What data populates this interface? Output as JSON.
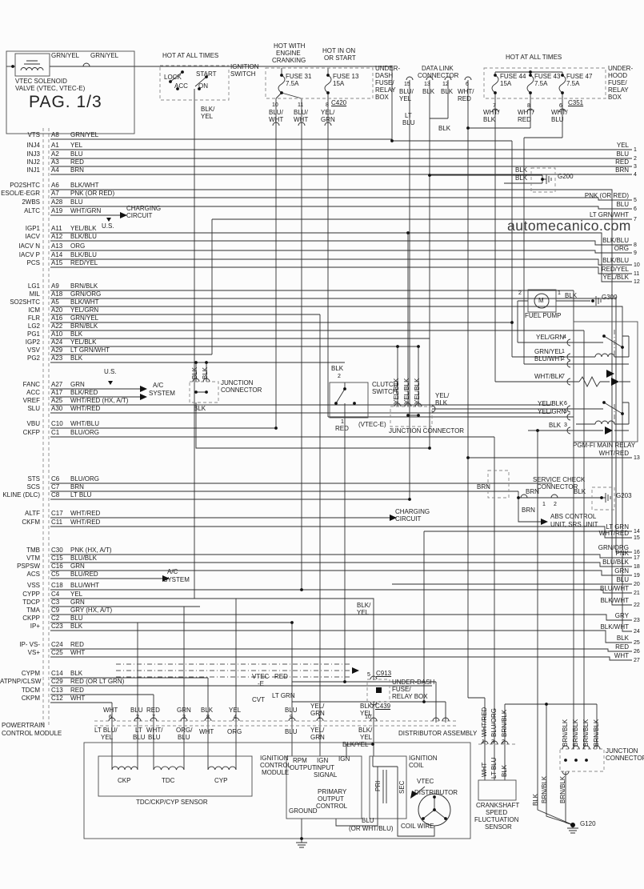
{
  "page": {
    "title": "PAG. 1/3",
    "watermark": "automecanico.com"
  },
  "pcm": {
    "module_label": [
      "POWERTRAIN",
      "CONTROL MODULE"
    ],
    "rows": [
      {
        "name": "VTS",
        "pin": "A8",
        "color": "GRN/YEL"
      },
      {
        "name": "INJ4",
        "pin": "A1",
        "color": "YEL"
      },
      {
        "name": "INJ3",
        "pin": "A2",
        "color": "BLU"
      },
      {
        "name": "INJ2",
        "pin": "A3",
        "color": "RED"
      },
      {
        "name": "INJ1",
        "pin": "A4",
        "color": "BRN"
      },
      {
        "name": "PO2SHTC",
        "pin": "A6",
        "color": "BLK/WHT"
      },
      {
        "name": "ESOL/E-EGR",
        "pin": "A7",
        "color": "PNK (OR RED)"
      },
      {
        "name": "2WBS",
        "pin": "A28",
        "color": "BLU"
      },
      {
        "name": "ALTC",
        "pin": "A19",
        "color": "WHT/GRN"
      },
      {
        "name": "IGP1",
        "pin": "A11",
        "color": "YEL/BLK"
      },
      {
        "name": "IACV",
        "pin": "A12",
        "color": "BLK/BLU"
      },
      {
        "name": "IACV N",
        "pin": "A13",
        "color": "ORG"
      },
      {
        "name": "IACV P",
        "pin": "A14",
        "color": "BLK/BLU"
      },
      {
        "name": "PCS",
        "pin": "A15",
        "color": "RED/YEL"
      },
      {
        "name": "LG1",
        "pin": "A9",
        "color": "BRN/BLK"
      },
      {
        "name": "MIL",
        "pin": "A18",
        "color": "GRN/ORG"
      },
      {
        "name": "SO2SHTC",
        "pin": "A5",
        "color": "BLK/WHT"
      },
      {
        "name": "ICM",
        "pin": "A20",
        "color": "YEL/GRN"
      },
      {
        "name": "FLR",
        "pin": "A16",
        "color": "GRN/YEL"
      },
      {
        "name": "LG2",
        "pin": "A22",
        "color": "BRN/BLK"
      },
      {
        "name": "PG1",
        "pin": "A10",
        "color": "BLK"
      },
      {
        "name": "IGP2",
        "pin": "A24",
        "color": "YEL/BLK"
      },
      {
        "name": "VSV",
        "pin": "A29",
        "color": "LT GRN/WHT"
      },
      {
        "name": "PG2",
        "pin": "A23",
        "color": "BLK"
      },
      {
        "name": "FANC",
        "pin": "A27",
        "color": "GRN"
      },
      {
        "name": "ACC",
        "pin": "A17",
        "color": "BLK/RED"
      },
      {
        "name": "VREF",
        "pin": "A25",
        "color": "WHT/RED (HX, A/T)"
      },
      {
        "name": "SLU",
        "pin": "A30",
        "color": "WHT/RED"
      },
      {
        "name": "VBU",
        "pin": "C10",
        "color": "WHT/BLU"
      },
      {
        "name": "CKFP",
        "pin": "C1",
        "color": "BLU/ORG"
      },
      {
        "name": "STS",
        "pin": "C6",
        "color": "BLU/ORG"
      },
      {
        "name": "SCS",
        "pin": "C7",
        "color": "BRN"
      },
      {
        "name": "KLINE (DLC)",
        "pin": "C8",
        "color": "LT BLU"
      },
      {
        "name": "ALTF",
        "pin": "C17",
        "color": "WHT/RED"
      },
      {
        "name": "CKFM",
        "pin": "C11",
        "color": "WHT/RED"
      },
      {
        "name": "TMB",
        "pin": "C30",
        "color": "PNK (HX, A/T)"
      },
      {
        "name": "VTM",
        "pin": "C15",
        "color": "BLU/BLK"
      },
      {
        "name": "PSPSW",
        "pin": "C16",
        "color": "GRN"
      },
      {
        "name": "ACS",
        "pin": "C5",
        "color": "BLU/RED"
      },
      {
        "name": "VSS",
        "pin": "C18",
        "color": "BLU/WHT"
      },
      {
        "name": "CYPP",
        "pin": "C4",
        "color": "YEL"
      },
      {
        "name": "TDCP",
        "pin": "C3",
        "color": "GRN"
      },
      {
        "name": "TMA",
        "pin": "C9",
        "color": "GRY (HX, A/T)"
      },
      {
        "name": "CKPP",
        "pin": "C2",
        "color": "BLU"
      },
      {
        "name": "IP+",
        "pin": "C23",
        "color": "BLK"
      },
      {
        "name": "IP- VS-",
        "pin": "C24",
        "color": "RED"
      },
      {
        "name": "VS+",
        "pin": "C25",
        "color": "WHT"
      },
      {
        "name": "CYPM",
        "pin": "C14",
        "color": "BLK"
      },
      {
        "name": "ATPNP/CLSW",
        "pin": "C29",
        "color": "RED (OR LT GRN)"
      },
      {
        "name": "TDCM",
        "pin": "C13",
        "color": "RED"
      },
      {
        "name": "CKPM",
        "pin": "C12",
        "color": "WHT"
      }
    ]
  },
  "right_edge": [
    {
      "num": "1",
      "color": "YEL"
    },
    {
      "num": "2",
      "color": "BLU"
    },
    {
      "num": "3",
      "color": "RED"
    },
    {
      "num": "4",
      "color": "BRN"
    },
    {
      "num": "5",
      "color": "PNK (OR RED)"
    },
    {
      "num": "6",
      "color": "BLU"
    },
    {
      "num": "7",
      "color": "LT GRN/WHT"
    },
    {
      "num": "8",
      "color": "BLK/BLU"
    },
    {
      "num": "9",
      "color": "ORG"
    },
    {
      "num": "10",
      "color": "BLK/BLU"
    },
    {
      "num": "11",
      "color": "RED/YEL"
    },
    {
      "num": "12",
      "color": "YEL/BLK"
    },
    {
      "num": "13",
      "color": "WHT/RED"
    },
    {
      "num": "14",
      "color": "LT GRN"
    },
    {
      "num": "15",
      "color": "WHT/RED"
    },
    {
      "num": "16",
      "color": "GRN/ORG"
    },
    {
      "num": "17",
      "color": "PNK"
    },
    {
      "num": "18",
      "color": "BLU/BLK"
    },
    {
      "num": "19",
      "color": "GRN"
    },
    {
      "num": "20",
      "color": "BLU"
    },
    {
      "num": "21",
      "color": "BLU/WHT"
    },
    {
      "num": "22",
      "color": "BLK/WHT"
    },
    {
      "num": "23",
      "color": "GRY"
    },
    {
      "num": "24",
      "color": "BLK/WHT"
    },
    {
      "num": "25",
      "color": "BLK"
    },
    {
      "num": "26",
      "color": "RED"
    },
    {
      "num": "27",
      "color": "WHT"
    }
  ],
  "labels": [
    [
      "GRN/YEL",
      64,
      66
    ],
    [
      "GRN/YEL",
      113,
      66
    ],
    [
      "VTEC SOLENOID",
      19,
      98
    ],
    [
      "VALVE  (VTEC, VTEC-E)",
      19,
      107
    ],
    [
      "HOT AT ALL TIMES",
      203,
      66
    ],
    [
      "IGNITION",
      288,
      80
    ],
    [
      "SWITCH",
      288,
      89
    ],
    [
      "LOCK",
      205,
      93
    ],
    [
      "START",
      245,
      89
    ],
    [
      "ACC",
      218,
      104
    ],
    [
      "ON",
      248,
      104
    ],
    [
      "BLK/",
      251,
      133
    ],
    [
      "YEL",
      251,
      142
    ],
    [
      "HOT WITH",
      342,
      54
    ],
    [
      "ENGINE",
      345,
      63
    ],
    [
      "CRANKING",
      340,
      72
    ],
    [
      "HOT IN ON",
      403,
      60
    ],
    [
      "OR START",
      405,
      69
    ],
    [
      "FUSE 31",
      357,
      92
    ],
    [
      "7.5A",
      357,
      101
    ],
    [
      "FUSE 13",
      416,
      92
    ],
    [
      "15A",
      416,
      101
    ],
    [
      "UNDER-",
      469,
      82
    ],
    [
      "DASH",
      469,
      91
    ],
    [
      "FUSE/",
      469,
      100
    ],
    [
      "RELAY",
      469,
      109
    ],
    [
      "BOX",
      469,
      118
    ],
    [
      "C420",
      414,
      125,
      "ul"
    ],
    [
      "10",
      340,
      128,
      "n"
    ],
    [
      "BLU/",
      336,
      137
    ],
    [
      "WHT",
      336,
      146
    ],
    [
      "11",
      372,
      128,
      "n"
    ],
    [
      "BLU/",
      367,
      137
    ],
    [
      "WHT",
      367,
      146
    ],
    [
      "8",
      407,
      128,
      "n"
    ],
    [
      "YEL/",
      401,
      137
    ],
    [
      "GRN",
      401,
      146
    ],
    [
      "DATA LINK",
      527,
      82
    ],
    [
      "CONNECTOR",
      522,
      91
    ],
    [
      "15",
      505,
      102,
      "n"
    ],
    [
      "BLU/",
      499,
      111
    ],
    [
      "YEL",
      499,
      120
    ],
    [
      "13",
      530,
      102,
      "n"
    ],
    [
      "BLK",
      528,
      111
    ],
    [
      "12",
      553,
      102,
      "n"
    ],
    [
      "BLK",
      551,
      111
    ],
    [
      "6",
      582,
      102,
      "n"
    ],
    [
      "WHT/",
      572,
      111
    ],
    [
      "RED",
      572,
      120
    ],
    [
      "LT",
      506,
      141
    ],
    [
      "BLU",
      503,
      150
    ],
    [
      "BLK",
      548,
      157
    ],
    [
      "HOT AT ALL TIMES",
      632,
      68
    ],
    [
      "FUSE 44",
      625,
      92
    ],
    [
      "15A",
      625,
      101
    ],
    [
      "FUSE 43",
      668,
      92
    ],
    [
      "7.5A",
      668,
      101
    ],
    [
      "FUSE 47",
      708,
      92
    ],
    [
      "7.5A",
      708,
      101
    ],
    [
      "UNDER-",
      760,
      82
    ],
    [
      "HOOD",
      760,
      91
    ],
    [
      "FUSE/",
      760,
      100
    ],
    [
      "RELAY",
      760,
      109
    ],
    [
      "BOX",
      760,
      118
    ],
    [
      "C351",
      710,
      125,
      "ul"
    ],
    [
      "7",
      616,
      129,
      "n"
    ],
    [
      "WHT/",
      604,
      137
    ],
    [
      "BLK",
      604,
      146
    ],
    [
      "8",
      659,
      129,
      "n"
    ],
    [
      "WHT/",
      647,
      137
    ],
    [
      "RED",
      647,
      146
    ],
    [
      "6",
      699,
      129,
      "n"
    ],
    [
      "WHT/",
      689,
      137
    ],
    [
      "BLU",
      689,
      146
    ],
    [
      "BLK",
      644,
      209
    ],
    [
      "BLK",
      644,
      219
    ],
    [
      "G200",
      697,
      217
    ],
    [
      "CHARGING",
      158,
      257
    ],
    [
      "CIRCUIT",
      158,
      266
    ],
    [
      "U.S.",
      127,
      279
    ],
    [
      "U.S.",
      130,
      461
    ],
    [
      "A/C",
      191,
      478
    ],
    [
      "SYSTEM",
      186,
      488
    ],
    [
      "2",
      648,
      363,
      "n"
    ],
    [
      "1",
      697,
      363,
      "n"
    ],
    [
      "BLK",
      706,
      366
    ],
    [
      "G309",
      752,
      368
    ],
    [
      "M",
      673,
      372
    ],
    [
      "FUEL PUMP",
      656,
      391
    ],
    [
      "YEL/GRN",
      670,
      418
    ],
    [
      "4",
      704,
      418,
      "n"
    ],
    [
      "GRN/YEL",
      668,
      436
    ],
    [
      "1",
      702,
      436,
      "n"
    ],
    [
      "BLU/WHT",
      668,
      445
    ],
    [
      "2",
      702,
      445,
      "n"
    ],
    [
      "WHT/BLK",
      668,
      467
    ],
    [
      "7",
      702,
      467,
      "n"
    ],
    [
      "YEL/BLK",
      672,
      501
    ],
    [
      "6",
      705,
      501,
      "n"
    ],
    [
      "YEL/GRN",
      672,
      511
    ],
    [
      "5",
      705,
      511,
      "n"
    ],
    [
      "BLK",
      686,
      528
    ],
    [
      "3",
      705,
      528,
      "n"
    ],
    [
      "PGM-FI MAIN RELAY",
      716,
      553
    ],
    [
      "BLK",
      240,
      474,
      "r"
    ],
    [
      "BLK",
      253,
      474,
      "r"
    ],
    [
      "JUNCTION",
      276,
      475
    ],
    [
      "CONNECTOR",
      276,
      484
    ],
    [
      "BLK",
      242,
      507
    ],
    [
      "BLK",
      414,
      457
    ],
    [
      "2",
      422,
      467,
      "n"
    ],
    [
      "CLUTCH",
      465,
      477
    ],
    [
      "SWITCH",
      465,
      486
    ],
    [
      "1",
      426,
      524,
      "n"
    ],
    [
      "RED",
      419,
      532
    ],
    [
      "(VTEC-E)",
      448,
      527
    ],
    [
      "YEL/BLK",
      492,
      505,
      "r"
    ],
    [
      "YEL/BLK",
      505,
      505,
      "r"
    ],
    [
      "YEL/BLK",
      518,
      505,
      "r"
    ],
    [
      "YEL/",
      544,
      491
    ],
    [
      "BLK",
      544,
      500
    ],
    [
      "JUNCTION CONNECTOR",
      486,
      535
    ],
    [
      "SERVICE CHECK",
      666,
      596
    ],
    [
      "CONNECTOR",
      671,
      605
    ],
    [
      "BRN",
      596,
      605
    ],
    [
      "BRN",
      657,
      611
    ],
    [
      "1",
      678,
      627,
      "n"
    ],
    [
      "2",
      692,
      627,
      "n"
    ],
    [
      "BLK",
      717,
      611
    ],
    [
      "G203",
      770,
      616
    ],
    [
      "BRN",
      652,
      634
    ],
    [
      "ABS CONTROL",
      688,
      642
    ],
    [
      "UNIT, SRS UNIT",
      688,
      652
    ],
    [
      "CHARGING",
      494,
      636
    ],
    [
      "CIRCUIT",
      494,
      645
    ],
    [
      "A/C",
      209,
      711
    ],
    [
      "SYSTEM",
      204,
      721
    ],
    [
      "BLK/",
      446,
      753
    ],
    [
      "YEL",
      446,
      762
    ],
    [
      "VTEC",
      315,
      842
    ],
    [
      "-E",
      322,
      851
    ],
    [
      "RED",
      343,
      842
    ],
    [
      "CVT",
      315,
      871
    ],
    [
      "LT GRN",
      340,
      866
    ],
    [
      "5",
      459,
      840,
      "n"
    ],
    [
      "C913",
      470,
      838,
      "ul"
    ],
    [
      "UNDER-DASH",
      490,
      849
    ],
    [
      "FUSE/",
      490,
      858
    ],
    [
      "RELAY BOX",
      490,
      867
    ],
    [
      "C439",
      469,
      879,
      "ul"
    ],
    [
      "WHT",
      129,
      884
    ],
    [
      "6",
      136,
      893,
      "n"
    ],
    [
      "BLU",
      163,
      884
    ],
    [
      "2",
      170,
      893,
      "n"
    ],
    [
      "RED",
      183,
      884
    ],
    [
      "7",
      190,
      893,
      "n"
    ],
    [
      "GRN",
      221,
      884
    ],
    [
      "3",
      228,
      893,
      "n"
    ],
    [
      "BLK",
      251,
      884
    ],
    [
      "8",
      258,
      893,
      "n"
    ],
    [
      "YEL",
      286,
      884
    ],
    [
      "4",
      292,
      893,
      "n"
    ],
    [
      "BLU",
      356,
      884
    ],
    [
      "9",
      362,
      893,
      "n"
    ],
    [
      "YEL/",
      388,
      879
    ],
    [
      "GRN",
      388,
      888
    ],
    [
      "1",
      397,
      893,
      "n"
    ],
    [
      "BLK/",
      450,
      879
    ],
    [
      "YEL",
      450,
      888
    ],
    [
      "10",
      456,
      893,
      "n"
    ],
    [
      "LT BLU/",
      118,
      909
    ],
    [
      "YEL",
      126,
      918
    ],
    [
      "LT",
      169,
      909
    ],
    [
      "BLU",
      166,
      918
    ],
    [
      "WHT/",
      183,
      909
    ],
    [
      "BLU",
      185,
      918
    ],
    [
      "ORG/",
      220,
      909
    ],
    [
      "BLU",
      222,
      918
    ],
    [
      "WHT",
      249,
      911
    ],
    [
      "ORG",
      284,
      911
    ],
    [
      "BLU",
      356,
      911
    ],
    [
      "YEL/",
      388,
      909
    ],
    [
      "GRN",
      388,
      918
    ],
    [
      "BLK/",
      448,
      909
    ],
    [
      "YEL",
      450,
      918
    ],
    [
      "DISTRIBUTOR ASSEMBLY",
      498,
      913
    ],
    [
      "CKP",
      147,
      972
    ],
    [
      "TDC",
      202,
      972
    ],
    [
      "CYP",
      268,
      972
    ],
    [
      "TDC/CKP/CYP SENSOR",
      170,
      999
    ],
    [
      "IGNITION",
      325,
      944
    ],
    [
      "CONTROL",
      325,
      953
    ],
    [
      "MODULE",
      327,
      962
    ],
    [
      "RPM",
      366,
      947
    ],
    [
      "OUTPUT",
      362,
      956
    ],
    [
      "IGN",
      396,
      947
    ],
    [
      "INPUT",
      394,
      956
    ],
    [
      "SIGNAL",
      392,
      965
    ],
    [
      "IGN",
      423,
      945
    ],
    [
      "BLK/YEL",
      428,
      927
    ],
    [
      "PRIMARY",
      397,
      986
    ],
    [
      "OUTPUT",
      397,
      995
    ],
    [
      "CONTROL",
      395,
      1004
    ],
    [
      "GROUND",
      361,
      1010
    ],
    [
      "IGNITION",
      511,
      944
    ],
    [
      "COIL",
      511,
      953
    ],
    [
      "PRI",
      469,
      989,
      "r"
    ],
    [
      "SEC",
      499,
      992,
      "r"
    ],
    [
      "VTEC",
      521,
      973
    ],
    [
      "DISTRIBUTOR",
      518,
      987
    ],
    [
      "COIL WIRE",
      501,
      1029
    ],
    [
      "BLU",
      452,
      1022
    ],
    [
      "(OR WHT/BLU)",
      436,
      1032
    ],
    [
      "G120",
      725,
      1026
    ],
    [
      "WHT/RED",
      602,
      921,
      "r"
    ],
    [
      "BLU/ORG",
      614,
      921,
      "r"
    ],
    [
      "BRN/BLK",
      627,
      921,
      "r"
    ],
    [
      "1",
      602,
      924,
      "n"
    ],
    [
      "3",
      614,
      924,
      "n"
    ],
    [
      "2",
      627,
      924,
      "n"
    ],
    [
      "WHT",
      602,
      971,
      "r"
    ],
    [
      "LT BLU",
      614,
      973,
      "r"
    ],
    [
      "BLK",
      627,
      971,
      "r"
    ],
    [
      "CRANKSHAFT",
      595,
      1003
    ],
    [
      "SPEED",
      607,
      1012
    ],
    [
      "FLUCTUATION",
      593,
      1021
    ],
    [
      "SENSOR",
      606,
      1030
    ],
    [
      "BRN/BLK",
      703,
      933,
      "r"
    ],
    [
      "BRN/BLK",
      716,
      933,
      "r"
    ],
    [
      "BRN/BLK",
      729,
      933,
      "r"
    ],
    [
      "BRN/BLK",
      742,
      933,
      "r"
    ],
    [
      "JUNCTION",
      757,
      935
    ],
    [
      "CONNECTOR",
      757,
      944
    ],
    [
      "BLK",
      666,
      1007,
      "r"
    ],
    [
      "BRN/BLK",
      677,
      1004,
      "r"
    ],
    [
      "BRN/BLK",
      700,
      1004,
      "r"
    ],
    [
      "POWERTRAIN",
      2,
      903
    ],
    [
      "CONTROL MODULE",
      2,
      913
    ]
  ]
}
